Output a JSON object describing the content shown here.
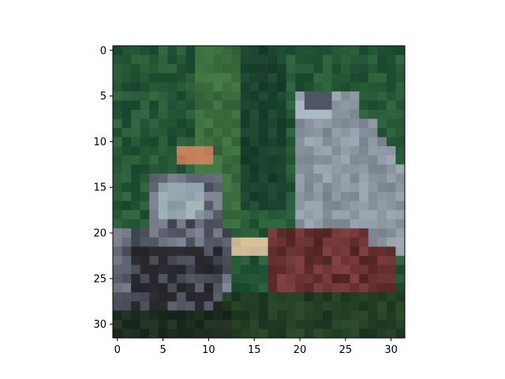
{
  "chart_data": {
    "type": "heatmap",
    "title": "",
    "xlabel": "",
    "ylabel": "",
    "grid": false,
    "xlim": [
      -0.5,
      31.5
    ],
    "ylim": [
      31.5,
      -0.5
    ],
    "x_ticks": [
      0,
      5,
      10,
      15,
      20,
      25,
      30
    ],
    "y_ticks": [
      0,
      5,
      10,
      15,
      20,
      25,
      30
    ],
    "x_tick_labels": [
      "0",
      "5",
      "10",
      "15",
      "20",
      "25",
      "30"
    ],
    "y_tick_labels": [
      "0",
      "5",
      "10",
      "15",
      "20",
      "25",
      "30"
    ],
    "image_size": [
      32,
      32
    ],
    "image_content": "low-resolution pixelated photo",
    "colors": {
      "background_green": "#1f4a35",
      "grass_light": "#3f6e3c",
      "object_gray": "#8a96a4",
      "object_dark": "#2b2b30",
      "object_brown": "#6a2e28",
      "object_tan": "#c8b08a"
    }
  }
}
